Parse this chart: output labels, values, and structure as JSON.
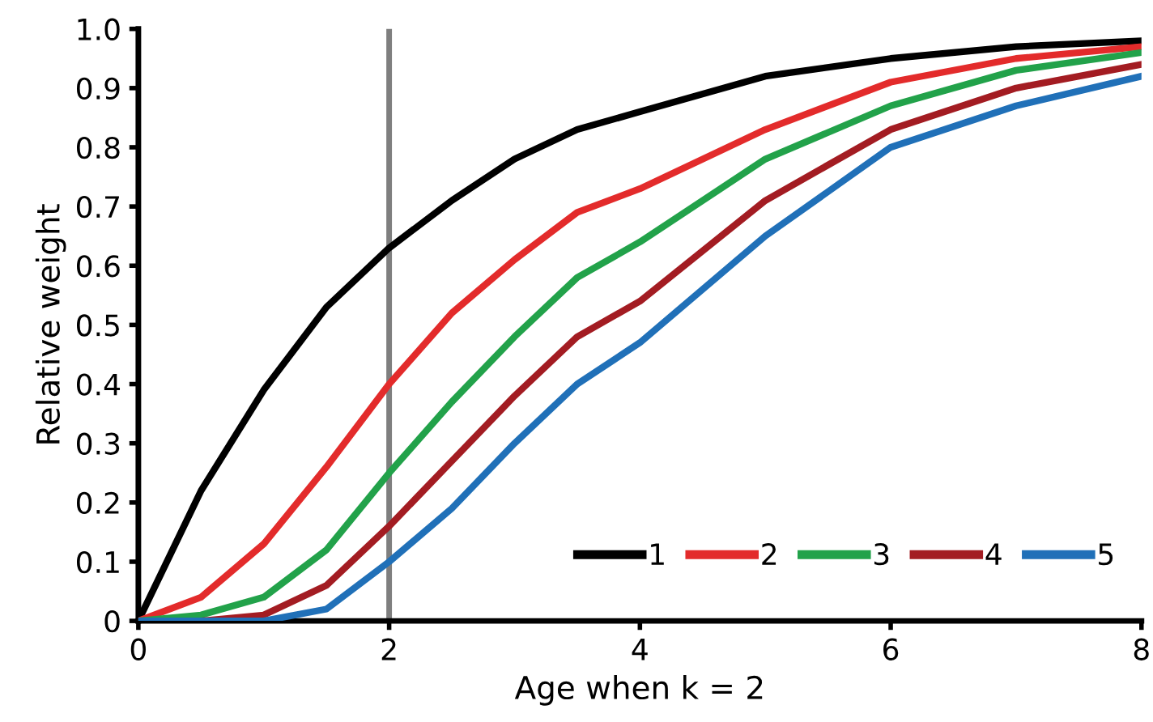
{
  "chart_data": {
    "type": "line",
    "xlabel": "Age when k = 2",
    "ylabel": "Relative weight",
    "x": [
      0,
      0.5,
      1,
      1.5,
      2,
      2.5,
      3,
      3.5,
      4,
      5,
      6,
      7,
      8
    ],
    "series": [
      {
        "name": "1",
        "color": "#000000",
        "values": [
          0,
          0.22,
          0.39,
          0.53,
          0.63,
          0.71,
          0.78,
          0.83,
          0.86,
          0.92,
          0.95,
          0.97,
          0.98
        ]
      },
      {
        "name": "2",
        "color": "#e32b2b",
        "values": [
          0,
          0.04,
          0.13,
          0.26,
          0.4,
          0.52,
          0.61,
          0.69,
          0.73,
          0.83,
          0.91,
          0.95,
          0.97
        ]
      },
      {
        "name": "3",
        "color": "#22a24a",
        "values": [
          0,
          0.01,
          0.04,
          0.12,
          0.25,
          0.37,
          0.48,
          0.58,
          0.64,
          0.78,
          0.87,
          0.93,
          0.96
        ]
      },
      {
        "name": "4",
        "color": "#a31c22",
        "values": [
          0,
          0,
          0.01,
          0.06,
          0.16,
          0.27,
          0.38,
          0.48,
          0.54,
          0.71,
          0.83,
          0.9,
          0.94
        ]
      },
      {
        "name": "5",
        "color": "#2070b8",
        "values": [
          0,
          0,
          0,
          0.02,
          0.1,
          0.19,
          0.3,
          0.4,
          0.47,
          0.65,
          0.8,
          0.87,
          0.92
        ]
      }
    ],
    "xlim": [
      0,
      8
    ],
    "xticks": [
      0,
      2,
      4,
      6,
      8
    ],
    "ylim": [
      0,
      1.0
    ],
    "yticks": [
      0,
      0.1,
      0.2,
      0.3,
      0.4,
      0.5,
      0.6,
      0.7,
      0.8,
      0.9,
      "1.0"
    ],
    "ref_lines": [
      {
        "axis": "x",
        "value": 2,
        "color": "#7f7f7f"
      }
    ],
    "legend": "bottom right",
    "grid": false,
    "marker": "none",
    "line_style": "solid"
  }
}
